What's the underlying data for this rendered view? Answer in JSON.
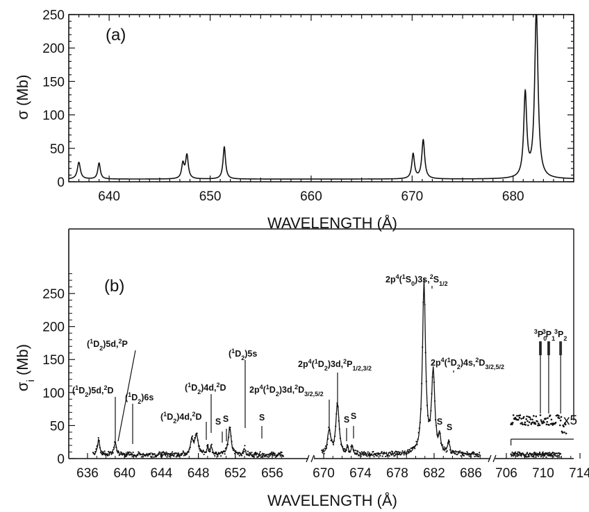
{
  "chart_data": [
    {
      "panel": "(a)",
      "type": "line",
      "xlabel": "WAVELENGTH (Å)",
      "ylabel": "σ (Mb)",
      "xlim": [
        636,
        686
      ],
      "ylim": [
        0,
        250
      ],
      "xticks": [
        640,
        650,
        660,
        670,
        680
      ],
      "yticks": [
        0,
        50,
        100,
        150,
        200,
        250
      ],
      "baseline": 4,
      "peaks": [
        {
          "x": 637.0,
          "y": 25,
          "w": 0.18
        },
        {
          "x": 639.0,
          "y": 24,
          "w": 0.15
        },
        {
          "x": 647.3,
          "y": 22,
          "w": 0.15
        },
        {
          "x": 647.7,
          "y": 35,
          "w": 0.16
        },
        {
          "x": 651.4,
          "y": 48,
          "w": 0.15
        },
        {
          "x": 670.1,
          "y": 37,
          "w": 0.16
        },
        {
          "x": 671.1,
          "y": 58,
          "w": 0.17
        },
        {
          "x": 681.2,
          "y": 125,
          "w": 0.18
        },
        {
          "x": 682.3,
          "y": 250,
          "w": 0.2
        }
      ]
    },
    {
      "panel": "(b)",
      "type": "scatter",
      "xlabel": "WAVELENGTH (Å)",
      "ylabel": "σi (Mb)",
      "ylim": [
        0,
        290
      ],
      "yticks": [
        0,
        50,
        100,
        150,
        200,
        250
      ],
      "xticks": [
        636,
        640,
        644,
        648,
        652,
        656,
        670,
        674,
        678,
        682,
        686,
        706,
        710,
        714
      ],
      "xtick_labels": [
        "636",
        "640",
        "644",
        "648",
        "652",
        "656",
        "670",
        "674",
        "678",
        "682",
        "686",
        "706",
        "710",
        "714"
      ],
      "x_segments": [
        [
          635.5,
          657.5
        ],
        [
          668.5,
          687.5
        ],
        [
          705.5,
          715.5
        ]
      ],
      "baseline": 6,
      "peaks": [
        {
          "x": 637.2,
          "y": 22,
          "w": 0.15
        },
        {
          "x": 639.0,
          "y": 18,
          "w": 0.15
        },
        {
          "x": 647.3,
          "y": 22,
          "w": 0.2
        },
        {
          "x": 647.8,
          "y": 30,
          "w": 0.2
        },
        {
          "x": 649.0,
          "y": 12,
          "w": 0.1
        },
        {
          "x": 649.4,
          "y": 14,
          "w": 0.1
        },
        {
          "x": 651.4,
          "y": 40,
          "w": 0.18
        },
        {
          "x": 653.0,
          "y": 10,
          "w": 0.1
        },
        {
          "x": 670.6,
          "y": 38,
          "w": 0.18
        },
        {
          "x": 671.5,
          "y": 78,
          "w": 0.2
        },
        {
          "x": 672.6,
          "y": 12,
          "w": 0.1
        },
        {
          "x": 673.1,
          "y": 15,
          "w": 0.1
        },
        {
          "x": 680.9,
          "y": 260,
          "w": 0.2
        },
        {
          "x": 681.9,
          "y": 125,
          "w": 0.2
        },
        {
          "x": 682.6,
          "y": 22,
          "w": 0.12
        },
        {
          "x": 683.6,
          "y": 18,
          "w": 0.12
        }
      ],
      "inset_x5": {
        "label": "x5",
        "x_range": [
          706.5,
          712.5
        ],
        "level": 58,
        "spread": 8,
        "lines": [
          {
            "label": "3P0",
            "x": 709.7
          },
          {
            "label": "3P1",
            "x": 710.6
          },
          {
            "label": "3P2",
            "x": 711.9
          }
        ]
      },
      "annotations": [
        {
          "id": "d5d2D"
        },
        {
          "id": "d5d2P"
        },
        {
          "id": "d6s"
        },
        {
          "id": "d4d2D-lo"
        },
        {
          "id": "d4d2D-hi"
        },
        {
          "id": "d5s"
        },
        {
          "id": "d3d2D"
        },
        {
          "id": "d3d2P"
        },
        {
          "id": "s0-3s"
        },
        {
          "id": "d4s2D"
        }
      ]
    }
  ],
  "panels": {
    "a": {
      "label": "(a)",
      "xlabel": "WAVELENGTH (Å)",
      "ylabel": "σ (Mb)"
    },
    "b": {
      "label": "(b)",
      "xlabel": "WAVELENGTH (Å)",
      "ylabel_main": "σ",
      "ylabel_sub": "i",
      "ylabel_rest": " (Mb)",
      "inset_label": "x5"
    }
  },
  "labels_b": {
    "s": "S",
    "d5d2D": {
      "open": "(",
      "sup1": "1",
      "mid1": "D",
      "sub1": "2",
      "close": ")5d,",
      "sup2": "2",
      "end": "D"
    },
    "d5d2P": {
      "open": "(",
      "sup1": "1",
      "mid1": "D",
      "sub1": "2",
      "close": ")5d,",
      "sup2": "2",
      "end": "P"
    },
    "d6s": {
      "open": "(",
      "sup1": "1",
      "mid1": "D",
      "sub1": "2",
      "close": ")6s"
    },
    "d4d2D_lo": {
      "open": "(",
      "sup1": "1",
      "mid1": "D",
      "sub1": "2",
      "close": ")4d,",
      "sup2": "2",
      "end": "D"
    },
    "d4d2D_hi": {
      "open": "(",
      "sup1": "1",
      "mid1": "D",
      "sub1": "2",
      "close": ")4d,",
      "sup2": "2",
      "end": "D"
    },
    "d5s": {
      "open": "(",
      "sup1": "1",
      "mid1": "D",
      "sub1": "2",
      "close": ")5s"
    },
    "d3d2D": {
      "pre": "2p",
      "sup0": "4",
      "open": "(",
      "sup1": "1",
      "mid1": "D",
      "sub1": "2",
      "close": ")3d,",
      "sup2": "2",
      "end": "D",
      "sub2": "3/2,5/2"
    },
    "d3d2P": {
      "pre": "2p",
      "sup0": "4",
      "open": "(",
      "sup1": "1",
      "mid1": "D",
      "sub1": "2",
      "close": ")3d,",
      "sup2": "2",
      "end": "P",
      "sub2": "1/2,3/2"
    },
    "s03s": {
      "pre": "2p",
      "sup0": "4",
      "open": "(",
      "sup1": "1",
      "mid1": "S",
      "sub1": "0",
      "close": ")3s,",
      "sup2": "2",
      "end": "S",
      "sub2": "1/2"
    },
    "d4s2D": {
      "pre": "2p",
      "sup0": "4",
      "open": "(",
      "sup1": "1",
      "mid1": "D",
      "sub1": "2",
      "close": ")4s,",
      "sup2": "2",
      "end": "D",
      "sub2": "3/2,5/2"
    },
    "p0": {
      "sup": "3",
      "main": "P",
      "sub": "0"
    },
    "p1": {
      "sup": "3",
      "main": "P",
      "sub": "1"
    },
    "p2": {
      "sup": "3",
      "main": "P",
      "sub": "2"
    }
  }
}
